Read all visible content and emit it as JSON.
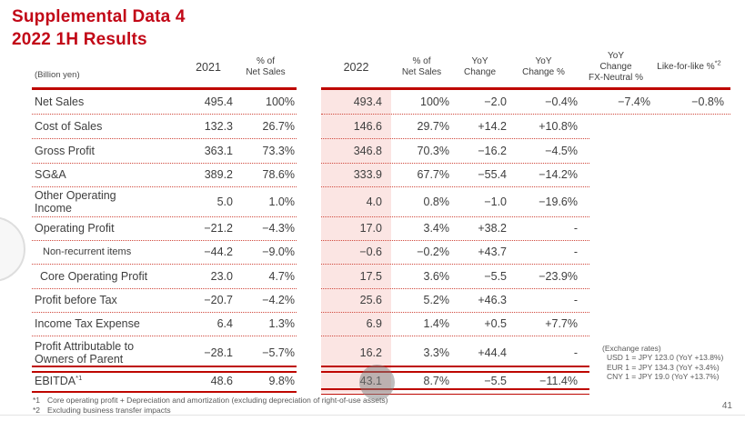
{
  "title": {
    "line1": "Supplemental Data 4",
    "line2": "2022 1H Results"
  },
  "colors": {
    "accent_red": "#BE0600",
    "title_red": "#C20817",
    "highlight_pink": "#FBE5E3",
    "body_text": "#3E3E3E"
  },
  "table": {
    "headers": {
      "unit": "(Billion yen)",
      "y2021": "2021",
      "pct_2021": "% of\nNet Sales",
      "y2022": "2022",
      "pct_2022": "% of\nNet Sales",
      "yoy_change": "YoY\nChange",
      "yoy_change_pct": "YoY\nChange %",
      "fx_neutral": "YoY\nChange\nFX-Neutral %",
      "like_for_like": "Like-for-like %",
      "like_for_like_sup": "*2"
    },
    "rows": [
      {
        "label": "Net Sales",
        "v2021": "495.4",
        "p2021": "100%",
        "v2022": "493.4",
        "p2022": "100%",
        "yoy": "−2.0",
        "yoyp": "−0.4%",
        "fx": "−7.4%",
        "lfl": "−0.8%"
      },
      {
        "label": "Cost of Sales",
        "v2021": "132.3",
        "p2021": "26.7%",
        "v2022": "146.6",
        "p2022": "29.7%",
        "yoy": "+14.2",
        "yoyp": "+10.8%",
        "fx": "",
        "lfl": ""
      },
      {
        "label": "Gross Profit",
        "v2021": "363.1",
        "p2021": "73.3%",
        "v2022": "346.8",
        "p2022": "70.3%",
        "yoy": "−16.2",
        "yoyp": "−4.5%",
        "fx": "",
        "lfl": ""
      },
      {
        "label": "SG&A",
        "v2021": "389.2",
        "p2021": "78.6%",
        "v2022": "333.9",
        "p2022": "67.7%",
        "yoy": "−55.4",
        "yoyp": "−14.2%",
        "fx": "",
        "lfl": ""
      },
      {
        "label": "Other Operating Income",
        "v2021": "5.0",
        "p2021": "1.0%",
        "v2022": "4.0",
        "p2022": "0.8%",
        "yoy": "−1.0",
        "yoyp": "−19.6%",
        "fx": "",
        "lfl": ""
      },
      {
        "label": "Operating Profit",
        "v2021": "−21.2",
        "p2021": "−4.3%",
        "v2022": "17.0",
        "p2022": "3.4%",
        "yoy": "+38.2",
        "yoyp": "-",
        "fx": "",
        "lfl": ""
      },
      {
        "label": "Non-recurrent items",
        "style": "small",
        "v2021": "−44.2",
        "p2021": "−9.0%",
        "v2022": "−0.6",
        "p2022": "−0.2%",
        "yoy": "+43.7",
        "yoyp": "-",
        "fx": "",
        "lfl": ""
      },
      {
        "label": "Core Operating Profit",
        "style": "indent",
        "v2021": "23.0",
        "p2021": "4.7%",
        "v2022": "17.5",
        "p2022": "3.6%",
        "yoy": "−5.5",
        "yoyp": "−23.9%",
        "fx": "",
        "lfl": ""
      },
      {
        "label": "Profit before Tax",
        "v2021": "−20.7",
        "p2021": "−4.2%",
        "v2022": "25.6",
        "p2022": "5.2%",
        "yoy": "+46.3",
        "yoyp": "-",
        "fx": "",
        "lfl": ""
      },
      {
        "label": "Income Tax Expense",
        "v2021": "6.4",
        "p2021": "1.3%",
        "v2022": "6.9",
        "p2022": "1.4%",
        "yoy": "+0.5",
        "yoyp": "+7.7%",
        "fx": "",
        "lfl": ""
      },
      {
        "label": "Profit Attributable to Owners of Parent",
        "v2021": "−28.1",
        "p2021": "−5.7%",
        "v2022": "16.2",
        "p2022": "3.3%",
        "yoy": "+44.4",
        "yoyp": "-",
        "fx": "",
        "lfl": ""
      },
      {
        "label": "EBITDA",
        "sup": "*1",
        "v2021": "48.6",
        "p2021": "9.8%",
        "v2022": "43.1",
        "p2022": "8.7%",
        "yoy": "−5.5",
        "yoyp": "−11.4%",
        "fx": "",
        "lfl": ""
      }
    ]
  },
  "exchange_rates": {
    "heading": "(Exchange rates)",
    "lines": [
      "USD 1 = JPY 123.0 (YoY +13.8%)",
      "EUR 1 = JPY 134.3 (YoY +3.4%)",
      "CNY 1 = JPY 19.0 (YoY +13.7%)"
    ]
  },
  "footnotes": [
    {
      "ref": "*1",
      "text": "Core operating profit + Depreciation and amortization (excluding depreciation of right-of-use assets)"
    },
    {
      "ref": "*2",
      "text": "Excluding business transfer impacts"
    }
  ],
  "page_number": "41"
}
